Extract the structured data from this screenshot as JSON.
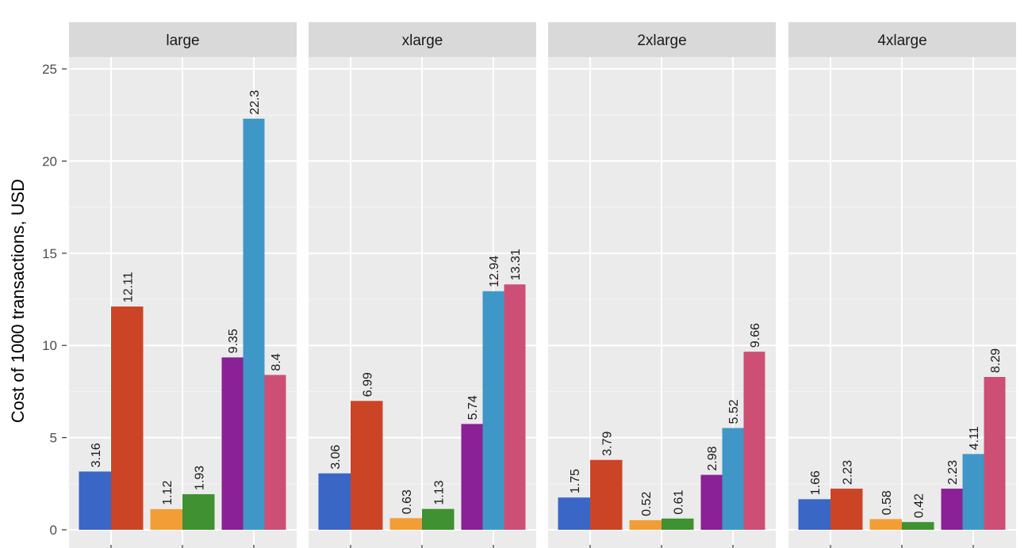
{
  "chart_data": {
    "type": "bar",
    "facet_by": "instance size",
    "ylabel": "Cost of 1000 transactions, USD",
    "xlabel": "",
    "ylim": [
      0,
      25
    ],
    "yticks": [
      0,
      5,
      10,
      15,
      20,
      25
    ],
    "grid": true,
    "legend": "none",
    "colors": [
      "#3a66c6",
      "#cc4426",
      "#f29d36",
      "#3f9131",
      "#8a2196",
      "#3f97c7",
      "#cd4f75"
    ],
    "panels": [
      {
        "title": "large",
        "groups": [
          [
            3.16,
            12.11
          ],
          [
            1.12,
            1.93
          ],
          [
            9.35,
            22.3,
            8.4
          ]
        ]
      },
      {
        "title": "xlarge",
        "groups": [
          [
            3.06,
            6.99
          ],
          [
            0.63,
            1.13
          ],
          [
            5.74,
            12.94,
            13.31
          ]
        ]
      },
      {
        "title": "2xlarge",
        "groups": [
          [
            1.75,
            3.79
          ],
          [
            0.52,
            0.61
          ],
          [
            2.98,
            5.52,
            9.66
          ]
        ]
      },
      {
        "title": "4xlarge",
        "groups": [
          [
            1.66,
            2.23
          ],
          [
            0.58,
            0.42
          ],
          [
            2.23,
            4.11,
            8.29
          ]
        ]
      }
    ]
  }
}
